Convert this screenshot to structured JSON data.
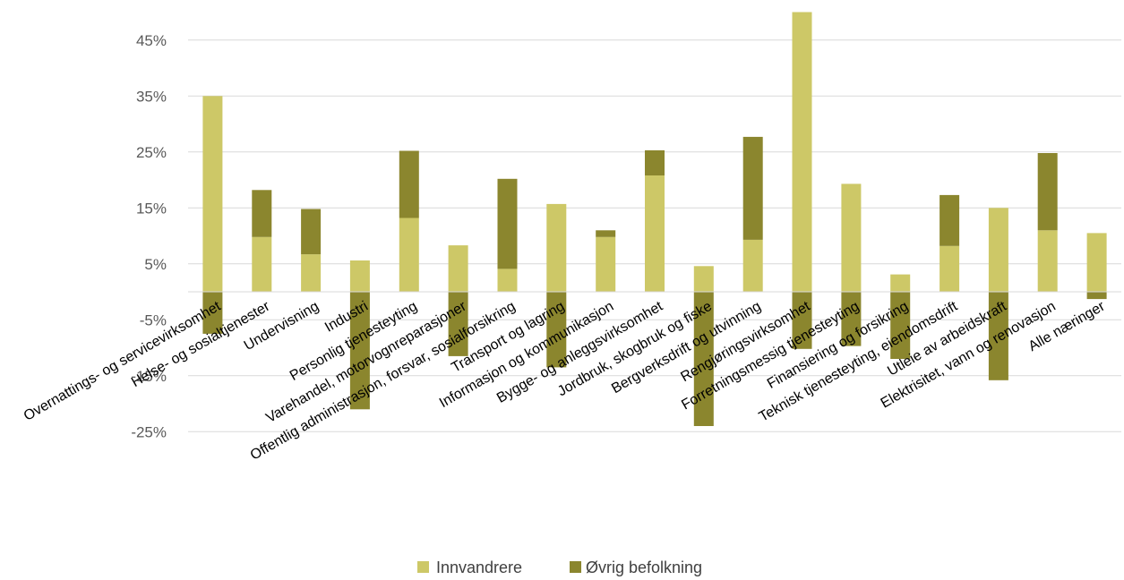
{
  "chart_data": {
    "type": "bar",
    "stacked": true,
    "categories": [
      "Overnattings- og servicevirksomhet",
      "Helse- og sosialtjenester",
      "Undervisning",
      "Industri",
      "Personlig tjenesteyting",
      "Varehandel, motorvognreparasjoner",
      "Offentlig administrasjon, forsvar, sosialforsikring",
      "Transport og lagring",
      "Informasjon og kommunikasjon",
      "Bygge- og anleggsvirksomhet",
      "Jordbruk, skogbruk og fiske",
      "Bergverksdrift og utvinning",
      "Rengjøringsvirksomhet",
      "Forretningsmessig tjenesteyting",
      "Finansiering og forsikring",
      "Teknisk tjenesteyting, eiendomsdrift",
      "Utleie av arbeidskraft",
      "Elektrisitet, vann og renovasjon",
      "Alle næringer"
    ],
    "series": [
      {
        "name": "Innvandrere",
        "color": "#cdc867",
        "values": [
          35.0,
          9.8,
          6.7,
          5.6,
          13.2,
          8.3,
          4.1,
          15.7,
          9.8,
          20.8,
          4.6,
          9.3,
          50.0,
          19.3,
          3.1,
          8.2,
          15.0,
          11.0,
          10.5
        ]
      },
      {
        "name": "Øvrig befolkning",
        "color": "#8b862e",
        "values": [
          -7.5,
          8.4,
          8.1,
          -21.0,
          12.0,
          -11.5,
          16.1,
          -13.5,
          1.2,
          4.5,
          -24.0,
          18.4,
          -10.2,
          -9.7,
          -12.0,
          9.1,
          -15.8,
          13.8,
          -1.3
        ]
      }
    ],
    "y_ticks": [
      "45%",
      "35%",
      "25%",
      "15%",
      "5%",
      "-5%",
      "-15%",
      "-25%"
    ],
    "ylim": [
      -25,
      50
    ],
    "grid": true,
    "legend": "bottom"
  }
}
